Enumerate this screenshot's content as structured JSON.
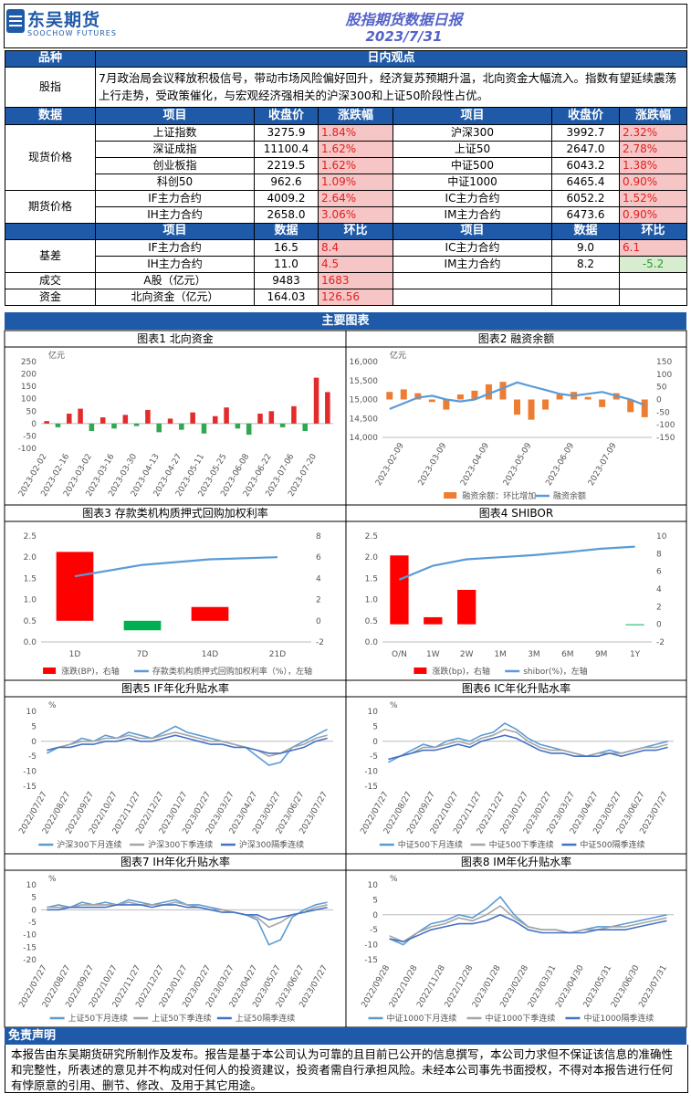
{
  "header": {
    "logo": "东吴期货",
    "logo_en": "SOOCHOW FUTURES",
    "title": "股指期货数据日报",
    "date": "2023/7/31"
  },
  "view": {
    "col1": "品种",
    "col2": "日内观点",
    "label": "股指",
    "text": "7月政治局会议释放积极信号，带动市场风险偏好回升，经济复苏预期升温，北向资金大幅流入。指数有望延续震荡上行走势，受政策催化，与宏观经济强相关的沪深300和上证50阶段性占优。"
  },
  "prices": {
    "headers": [
      "数据",
      "项目",
      "收盘价",
      "涨跌幅",
      "项目",
      "收盘价",
      "涨跌幅"
    ],
    "groups": [
      {
        "label": "现货价格",
        "rows": [
          [
            "上证指数",
            "3275.9",
            "1.84%",
            "沪深300",
            "3992.7",
            "2.32%"
          ],
          [
            "深证成指",
            "11100.4",
            "1.62%",
            "上证50",
            "2647.0",
            "2.78%"
          ],
          [
            "创业板指",
            "2219.5",
            "1.62%",
            "中证500",
            "6043.2",
            "1.38%"
          ],
          [
            "科创50",
            "962.6",
            "1.09%",
            "中证1000",
            "6465.4",
            "0.90%"
          ]
        ]
      },
      {
        "label": "期货价格",
        "rows": [
          [
            "IF主力合约",
            "4009.2",
            "2.64%",
            "IC主力合约",
            "6052.2",
            "1.52%"
          ],
          [
            "IH主力合约",
            "2658.0",
            "3.06%",
            "IM主力合约",
            "6473.6",
            "0.90%"
          ]
        ]
      }
    ]
  },
  "basis": {
    "headers": [
      "项目",
      "数据",
      "环比",
      "项目",
      "数据",
      "环比"
    ],
    "groups": [
      {
        "label": "基差",
        "rows": [
          [
            "IF主力合约",
            "16.5",
            "8.4",
            "IC主力合约",
            "9.0",
            "6.1"
          ],
          [
            "IH主力合约",
            "11.0",
            "4.5",
            "IM主力合约",
            "8.2",
            "-5.2"
          ]
        ]
      },
      {
        "label": "成交",
        "rows": [
          [
            "A股（亿元）",
            "9483",
            "1683"
          ]
        ]
      },
      {
        "label": "资金",
        "rows": [
          [
            "北向资金（亿元）",
            "164.03",
            "126.56"
          ]
        ]
      }
    ]
  },
  "charts_title": "主要图表",
  "charts": [
    {
      "type": "bar",
      "title": "图表1  北向资金",
      "unit": "亿元",
      "ylim": [
        -100,
        250
      ],
      "yticks": [
        -100,
        -50,
        0,
        50,
        100,
        150,
        200,
        250
      ],
      "categories": [
        "2023-02-02",
        null,
        "2023-02-16",
        null,
        "2023-03-02",
        null,
        "2023-03-16",
        null,
        "2023-03-30",
        null,
        "2023-04-13",
        null,
        "2023-04-27",
        null,
        "2023-05-11",
        null,
        "2023-05-25",
        null,
        "2023-06-08",
        null,
        "2023-06-22",
        null,
        "2023-07-06",
        null,
        "2023-07-20",
        null
      ],
      "series": [
        {
          "kind": "bar",
          "color": "#e32b2b",
          "negative_color": "#2fa84f",
          "values": [
            10,
            -15,
            40,
            60,
            -30,
            25,
            -20,
            35,
            -10,
            55,
            -35,
            20,
            -25,
            45,
            -40,
            30,
            65,
            -20,
            -45,
            40,
            50,
            -15,
            70,
            -30,
            185,
            127
          ]
        }
      ]
    },
    {
      "type": "combo",
      "title": "图表2  融资余额",
      "unit": "亿元",
      "ylim": [
        14000,
        16000
      ],
      "yticks": [
        {
          "value": 14000,
          "label": "14,000"
        },
        {
          "value": 14500,
          "label": "14,500"
        },
        {
          "value": 15000,
          "label": "15,000"
        },
        {
          "value": 15500,
          "label": "15,500"
        },
        {
          "value": 16000,
          "label": "16,000"
        }
      ],
      "y2lim": [
        -150,
        150
      ],
      "y2ticks": [
        -150,
        -100,
        -50,
        0,
        50,
        100,
        150
      ],
      "categories": [
        null,
        "2023-02-09",
        null,
        null,
        "2023-03-09",
        null,
        null,
        "2023-04-09",
        null,
        null,
        "2023-05-09",
        null,
        null,
        "2023-06-09",
        null,
        null,
        "2023-07-09",
        null,
        null
      ],
      "series": [
        {
          "kind": "bar",
          "axis": "y2",
          "name": "融资余额：环比增加",
          "color": "#ed7d31",
          "values": [
            30,
            40,
            25,
            -10,
            -40,
            20,
            35,
            60,
            70,
            -60,
            -80,
            -40,
            20,
            30,
            10,
            -30,
            25,
            -50,
            -70
          ]
        },
        {
          "kind": "line",
          "name": "融资余额",
          "color": "#5b9bd5",
          "values": [
            14750,
            14900,
            15050,
            15100,
            15000,
            14950,
            15000,
            15150,
            15300,
            15450,
            15350,
            15250,
            15150,
            15100,
            15150,
            15200,
            15100,
            15000,
            14850
          ]
        }
      ]
    },
    {
      "type": "combo",
      "title": "图表3  存款类机构质押式回购加权利率",
      "ylim": [
        0,
        2.5
      ],
      "yticks": [
        {
          "value": 0,
          "label": "0.0"
        },
        0.5,
        {
          "value": 1,
          "label": "1.0"
        },
        1.5,
        {
          "value": 2,
          "label": "2.0"
        },
        2.5
      ],
      "y2lim": [
        -2,
        8
      ],
      "y2ticks": [
        -2,
        0,
        2,
        4,
        6,
        8
      ],
      "categories": [
        "1D",
        "7D",
        "14D",
        "21D"
      ],
      "series": [
        {
          "kind": "bar",
          "axis": "y2",
          "name": "涨跌(BP)，右轴",
          "color": "#ff0000",
          "negative_color": "#00b050",
          "values": [
            6.5,
            -0.9,
            1.3,
            0
          ]
        },
        {
          "kind": "line",
          "name": "存款类机构质押式回购加权利率（%），左轴",
          "color": "#5b9bd5",
          "values": [
            1.55,
            1.82,
            1.95,
            2.0
          ]
        }
      ]
    },
    {
      "type": "combo",
      "title": "图表4  SHIBOR",
      "ylim": [
        0,
        2.5
      ],
      "yticks": [
        {
          "value": 0,
          "label": "0.0"
        },
        0.5,
        {
          "value": 1,
          "label": "1.0"
        },
        1.5,
        {
          "value": 2,
          "label": "2.0"
        },
        2.5
      ],
      "y2lim": [
        -2,
        10
      ],
      "y2ticks": [
        -2,
        0,
        2,
        4,
        6,
        8,
        10
      ],
      "categories": [
        "O/N",
        "1W",
        "2W",
        "1M",
        "3M",
        "6M",
        "9M",
        "1Y"
      ],
      "series": [
        {
          "kind": "bar",
          "axis": "y2",
          "name": "涨跌(bp)，右轴",
          "color": "#ff0000",
          "negative_color": "#00b050",
          "values": [
            7.8,
            0.8,
            3.9,
            0,
            0,
            0,
            0,
            -0.1
          ]
        },
        {
          "kind": "line",
          "name": "shibor(%)，左轴",
          "color": "#5b9bd5",
          "values": [
            1.47,
            1.8,
            1.95,
            2.0,
            2.05,
            2.12,
            2.2,
            2.25
          ]
        }
      ]
    },
    {
      "type": "line",
      "title": "图表5  IF年化升贴水率",
      "unit": "%",
      "ylim": [
        -15,
        10
      ],
      "yticks": [
        -15,
        -10,
        -5,
        0,
        5,
        10
      ],
      "categories": [
        "2022/07/27",
        null,
        "2022/08/27",
        null,
        "2022/09/27",
        null,
        "2022/10/27",
        null,
        "2022/11/27",
        null,
        "2022/12/27",
        null,
        "2023/01/27",
        null,
        "2023/02/27",
        null,
        "2023/03/27",
        null,
        "2023/04/27",
        null,
        "2023/05/27",
        null,
        "2023/06/27",
        null,
        "2023/07/27"
      ],
      "series": [
        {
          "kind": "line",
          "name": "沪深300下月连续",
          "color": "#5b9bd5",
          "values": [
            -4,
            -2,
            -1,
            1,
            0,
            2,
            1,
            3,
            2,
            1,
            3,
            5,
            3,
            2,
            1,
            0,
            -1,
            -2,
            -5,
            -8,
            -7,
            -2,
            0,
            2,
            4
          ]
        },
        {
          "kind": "line",
          "name": "沪深300下季连续",
          "color": "#a5a5a5",
          "values": [
            -3,
            -2,
            -1,
            0,
            0,
            1,
            1,
            2,
            1,
            1,
            2,
            3,
            2,
            1,
            0,
            0,
            -1,
            -2,
            -3,
            -5,
            -4,
            -2,
            -1,
            1,
            2
          ]
        },
        {
          "kind": "line",
          "name": "沪深300隔季连续",
          "color": "#4472c4",
          "values": [
            -3,
            -2,
            -2,
            -1,
            -1,
            0,
            0,
            1,
            0,
            0,
            1,
            2,
            1,
            0,
            -1,
            -1,
            -2,
            -2,
            -3,
            -4,
            -4,
            -3,
            -2,
            0,
            1
          ]
        }
      ]
    },
    {
      "type": "line",
      "title": "图表6  IC年化升贴水率",
      "ylim": [
        -15,
        10
      ],
      "yticks": [
        -15,
        -10,
        -5,
        0,
        5,
        10
      ],
      "unit": "%",
      "categories": [
        "2022/07/27",
        null,
        "2022/08/27",
        null,
        "2022/09/27",
        null,
        "2022/10/27",
        null,
        "2022/11/27",
        null,
        "2022/12/27",
        null,
        "2023/01/27",
        null,
        "2023/02/27",
        null,
        "2023/03/27",
        null,
        "2023/04/27",
        null,
        "2023/05/27",
        null,
        "2023/06/27",
        null,
        "2023/07/27"
      ],
      "series": [
        {
          "kind": "line",
          "name": "中证500下月连续",
          "color": "#5b9bd5",
          "values": [
            -7,
            -5,
            -3,
            -1,
            -2,
            0,
            1,
            0,
            2,
            3,
            6,
            4,
            1,
            -1,
            -2,
            -3,
            -4,
            -5,
            -4,
            -3,
            -4,
            -3,
            -2,
            -1,
            0
          ]
        },
        {
          "kind": "line",
          "name": "中证500下季连续",
          "color": "#a5a5a5",
          "values": [
            -6,
            -5,
            -4,
            -2,
            -2,
            -1,
            0,
            -1,
            1,
            2,
            4,
            3,
            0,
            -2,
            -3,
            -3,
            -4,
            -5,
            -4,
            -4,
            -4,
            -3,
            -2,
            -2,
            -1
          ]
        },
        {
          "kind": "line",
          "name": "中证500隔季连续",
          "color": "#4472c4",
          "values": [
            -6,
            -5,
            -4,
            -3,
            -3,
            -2,
            -1,
            -2,
            0,
            1,
            2,
            1,
            -1,
            -3,
            -4,
            -4,
            -5,
            -5,
            -5,
            -4,
            -5,
            -4,
            -3,
            -3,
            -2
          ]
        }
      ]
    },
    {
      "type": "line",
      "title": "图表7  IH年化升贴水率",
      "unit": "%",
      "ylim": [
        -20,
        10
      ],
      "yticks": [
        -20,
        -15,
        -10,
        -5,
        0,
        5,
        10
      ],
      "categories": [
        "2022/07/27",
        null,
        "2022/08/27",
        null,
        "2022/09/27",
        null,
        "2022/10/27",
        null,
        "2022/11/27",
        null,
        "2022/12/27",
        null,
        "2023/01/27",
        null,
        "2023/02/27",
        null,
        "2023/03/27",
        null,
        "2023/04/27",
        null,
        "2023/05/27",
        null,
        "2023/06/27",
        null,
        "2023/07/27"
      ],
      "series": [
        {
          "kind": "line",
          "name": "上证50下月连续",
          "color": "#5b9bd5",
          "values": [
            1,
            2,
            1,
            3,
            2,
            3,
            2,
            4,
            3,
            2,
            3,
            4,
            2,
            2,
            1,
            0,
            -1,
            -2,
            -4,
            -14,
            -12,
            -3,
            0,
            2,
            3
          ]
        },
        {
          "kind": "line",
          "name": "上证50下季连续",
          "color": "#a5a5a5",
          "values": [
            1,
            1,
            1,
            2,
            2,
            2,
            2,
            3,
            2,
            2,
            2,
            3,
            2,
            1,
            0,
            0,
            -1,
            -2,
            -3,
            -7,
            -5,
            -2,
            -1,
            1,
            2
          ]
        },
        {
          "kind": "line",
          "name": "上证50隔季连续",
          "color": "#4472c4",
          "values": [
            0,
            0,
            1,
            1,
            1,
            1,
            2,
            2,
            2,
            1,
            2,
            2,
            1,
            1,
            0,
            -1,
            -1,
            -2,
            -2,
            -4,
            -3,
            -2,
            -1,
            0,
            1
          ]
        }
      ]
    },
    {
      "type": "line",
      "title": "图表8  IM年化升贴水率",
      "unit": "%",
      "ylim": [
        -15,
        10
      ],
      "yticks": [
        -15,
        -10,
        -5,
        0,
        5,
        10
      ],
      "categories": [
        "2022/09/28",
        null,
        "2022/10/28",
        null,
        "2022/11/28",
        null,
        "2022/12/28",
        null,
        "2023/01/28",
        null,
        "2023/02/28",
        null,
        "2023/03/31",
        null,
        "2023/04/30",
        null,
        "2023/05/31",
        null,
        "2023/06/30",
        null,
        "2023/07/31"
      ],
      "series": [
        {
          "kind": "line",
          "name": "中证1000下月连续",
          "color": "#5b9bd5",
          "values": [
            -8,
            -10,
            -6,
            -3,
            -2,
            0,
            -1,
            2,
            6,
            0,
            -4,
            -5,
            -5,
            -6,
            -5,
            -4,
            -4,
            -3,
            -2,
            -1,
            0
          ]
        },
        {
          "kind": "line",
          "name": "中证1000下季连续",
          "color": "#a5a5a5",
          "values": [
            -7,
            -9,
            -6,
            -4,
            -3,
            -1,
            -2,
            0,
            3,
            -1,
            -4,
            -5,
            -5,
            -6,
            -5,
            -5,
            -4,
            -4,
            -3,
            -2,
            -1
          ]
        },
        {
          "kind": "line",
          "name": "中证1000隔季连续",
          "color": "#4472c4",
          "values": [
            -8,
            -9,
            -7,
            -5,
            -4,
            -3,
            -3,
            -2,
            0,
            -2,
            -5,
            -6,
            -6,
            -6,
            -6,
            -5,
            -5,
            -5,
            -4,
            -3,
            -2
          ]
        }
      ]
    }
  ],
  "disclaimer": {
    "title": "免责声明",
    "text": "本报告由东吴期货研究所制作及发布。报告是基于本公司认为可靠的且目前已公开的信息撰写，本公司力求但不保证该信息的准确性和完整性，所表述的意见并不构成对任何人的投资建议，投资者需自行承担风险。未经本公司事先书面授权，不得对本报告进行任何有悖原意的引用、删节、修改、及用于其它用途。"
  }
}
